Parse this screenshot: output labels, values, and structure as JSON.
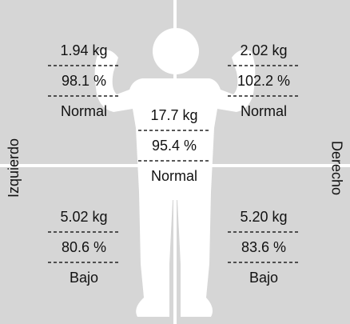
{
  "side_labels": {
    "left": "Izquierdo",
    "right": "Derecho"
  },
  "segments": [
    {
      "mass": "1.94 kg",
      "percent": "98.1 %",
      "status": "Normal"
    },
    {
      "mass": "2.02 kg",
      "percent": "102.2 %",
      "status": "Normal"
    },
    {
      "mass": "17.7 kg",
      "percent": "95.4 %",
      "status": "Normal"
    },
    {
      "mass": "5.02 kg",
      "percent": "80.6 %",
      "status": "Bajo"
    },
    {
      "mass": "5.20 kg",
      "percent": "83.6 %",
      "status": "Bajo"
    }
  ]
}
